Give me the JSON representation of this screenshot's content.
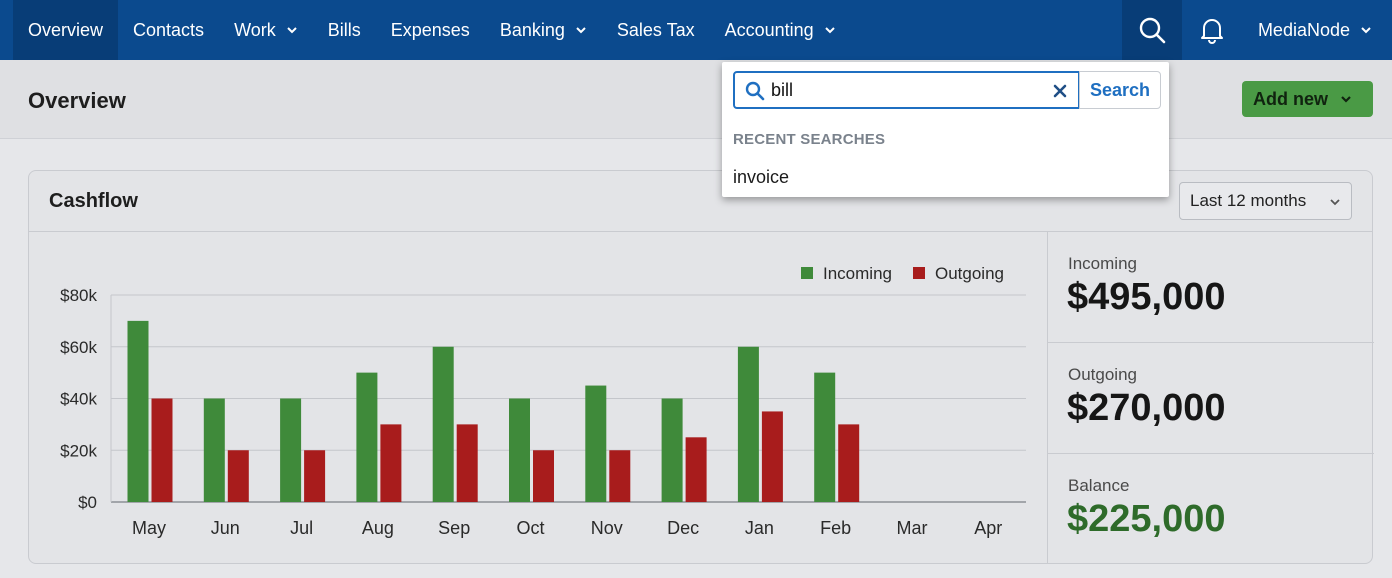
{
  "nav": {
    "items": [
      {
        "label": "Overview",
        "active": true,
        "dropdown": false
      },
      {
        "label": "Contacts",
        "active": false,
        "dropdown": false
      },
      {
        "label": "Work",
        "active": false,
        "dropdown": true
      },
      {
        "label": "Bills",
        "active": false,
        "dropdown": false
      },
      {
        "label": "Expenses",
        "active": false,
        "dropdown": false
      },
      {
        "label": "Banking",
        "active": false,
        "dropdown": true
      },
      {
        "label": "Sales Tax",
        "active": false,
        "dropdown": false
      },
      {
        "label": "Accounting",
        "active": false,
        "dropdown": true
      }
    ],
    "user": "MediaNode",
    "icons": [
      "search-icon",
      "bell-icon",
      "chevron-down-icon"
    ]
  },
  "page": {
    "title": "Overview",
    "add_new_label": "Add new"
  },
  "cashflow": {
    "title": "Cashflow",
    "range": "Last 12 months",
    "stats": {
      "incoming_label": "Incoming",
      "incoming_value": "$495,000",
      "outgoing_label": "Outgoing",
      "outgoing_value": "$270,000",
      "balance_label": "Balance",
      "balance_value": "$225,000"
    }
  },
  "chart_data": {
    "type": "bar",
    "title": "",
    "xlabel": "",
    "ylabel": "",
    "ylim": [
      0,
      80000
    ],
    "yticks": [
      0,
      20000,
      40000,
      60000,
      80000
    ],
    "ytick_labels": [
      "$0",
      "$20k",
      "$40k",
      "$60k",
      "$80k"
    ],
    "categories": [
      "May",
      "Jun",
      "Jul",
      "Aug",
      "Sep",
      "Oct",
      "Nov",
      "Dec",
      "Jan",
      "Feb",
      "Mar",
      "Apr"
    ],
    "series": [
      {
        "name": "Incoming",
        "color": "#3f8a3a",
        "values": [
          70000,
          40000,
          40000,
          50000,
          60000,
          40000,
          45000,
          40000,
          60000,
          50000,
          null,
          null
        ]
      },
      {
        "name": "Outgoing",
        "color": "#a81c1c",
        "values": [
          40000,
          20000,
          20000,
          30000,
          30000,
          20000,
          20000,
          25000,
          35000,
          30000,
          null,
          null
        ]
      }
    ],
    "legend": "top-right",
    "grid": true
  },
  "search": {
    "query": "bill",
    "button_label": "Search",
    "recent_heading": "RECENT SEARCHES",
    "recent": [
      "invoice"
    ],
    "accent": "#1f6fc1"
  },
  "colors": {
    "nav_bg": "#0b4a8e",
    "primary_green": "#4a9a45",
    "balance_green": "#2e6b2a"
  }
}
